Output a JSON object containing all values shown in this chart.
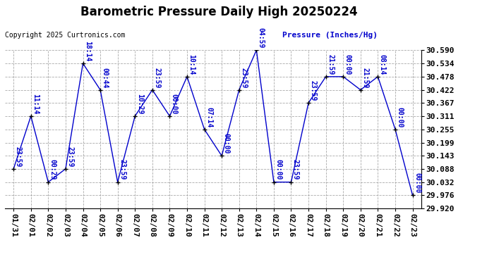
{
  "title": "Barometric Pressure Daily High 20250224",
  "copyright": "Copyright 2025 Curtronics.com",
  "ylabel": "Pressure (Inches/Hg)",
  "ylim": [
    29.92,
    30.59
  ],
  "yticks": [
    29.92,
    29.976,
    30.032,
    30.088,
    30.143,
    30.199,
    30.255,
    30.311,
    30.367,
    30.422,
    30.478,
    30.534,
    30.59
  ],
  "background_color": "#ffffff",
  "grid_color": "#aaaaaa",
  "line_color": "#0000cc",
  "point_color": "#000000",
  "label_color": "#0000cc",
  "dates": [
    "01/31",
    "02/01",
    "02/02",
    "02/03",
    "02/04",
    "02/05",
    "02/06",
    "02/07",
    "02/08",
    "02/09",
    "02/10",
    "02/11",
    "02/12",
    "02/13",
    "02/14",
    "02/15",
    "02/16",
    "02/17",
    "02/18",
    "02/19",
    "02/20",
    "02/21",
    "02/22",
    "02/23"
  ],
  "values": [
    30.088,
    30.311,
    30.032,
    30.088,
    30.534,
    30.422,
    30.032,
    30.311,
    30.422,
    30.311,
    30.478,
    30.255,
    30.143,
    30.422,
    30.59,
    30.032,
    30.032,
    30.367,
    30.478,
    30.478,
    30.422,
    30.478,
    30.255,
    29.976
  ],
  "times": [
    "23:59",
    "11:14",
    "00:29",
    "23:59",
    "18:14",
    "00:44",
    "23:59",
    "10:29",
    "23:59",
    "00:00",
    "10:14",
    "07:14",
    "00:00",
    "23:59",
    "04:59",
    "00:00",
    "23:59",
    "23:59",
    "21:59",
    "00:00",
    "21:59",
    "08:14",
    "00:00",
    "00:00"
  ],
  "title_fontsize": 12,
  "label_fontsize": 7,
  "tick_fontsize": 8,
  "ytick_fontsize": 8,
  "copyright_fontsize": 7,
  "ylabel_fontsize": 8
}
